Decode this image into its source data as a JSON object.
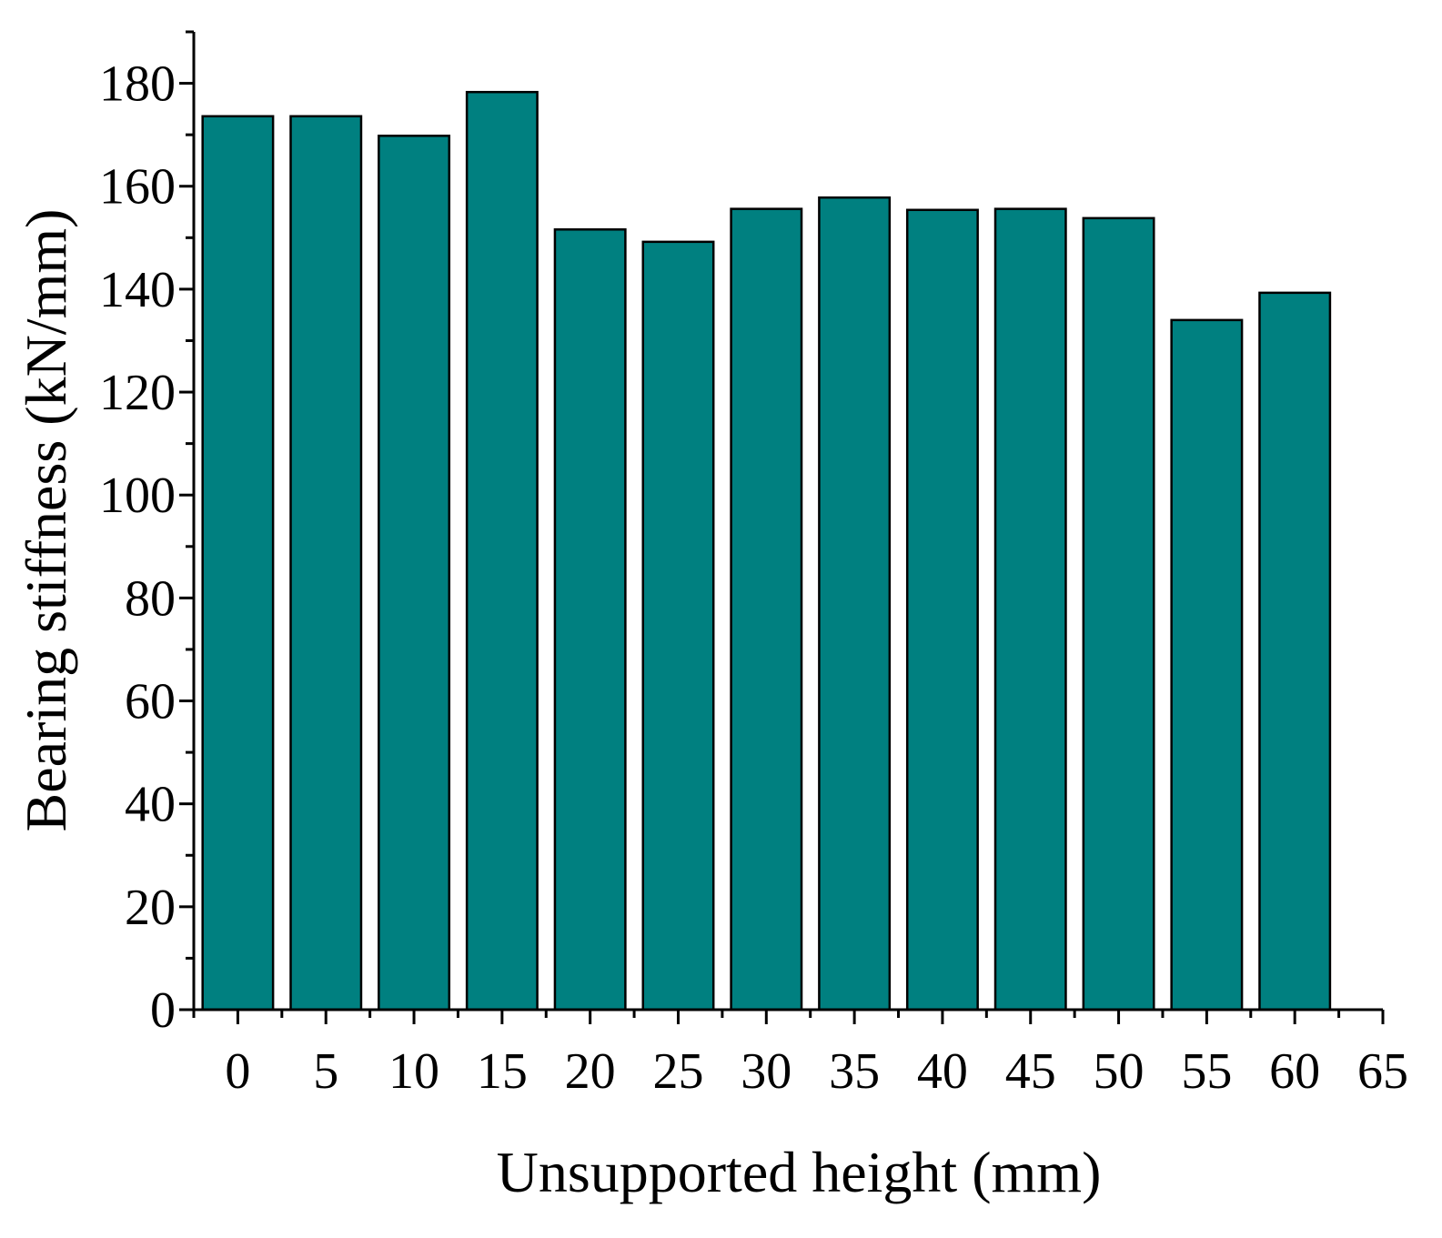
{
  "chart_data": {
    "type": "bar",
    "xlabel": "Unsupported height (mm)",
    "ylabel": "Bearing stiffness (kN/mm)",
    "x": [
      0,
      5,
      10,
      15,
      20,
      25,
      30,
      35,
      40,
      45,
      50,
      55,
      60
    ],
    "values": [
      173.6,
      173.6,
      169.8,
      178.3,
      151.6,
      149.2,
      155.6,
      157.8,
      155.4,
      155.6,
      153.8,
      134.0,
      139.3
    ],
    "xlim": [
      -2.5,
      65
    ],
    "ylim": [
      0,
      190
    ],
    "x_ticks": [
      0,
      5,
      10,
      15,
      20,
      25,
      30,
      35,
      40,
      45,
      50,
      55,
      60,
      65
    ],
    "y_ticks": [
      0,
      20,
      40,
      60,
      80,
      100,
      120,
      140,
      160,
      180
    ],
    "bar_width": 4,
    "grid": false,
    "legend": "none",
    "colors": {
      "bar_fill": "#008080",
      "bar_edge": "#000000",
      "axis": "#000000"
    }
  }
}
